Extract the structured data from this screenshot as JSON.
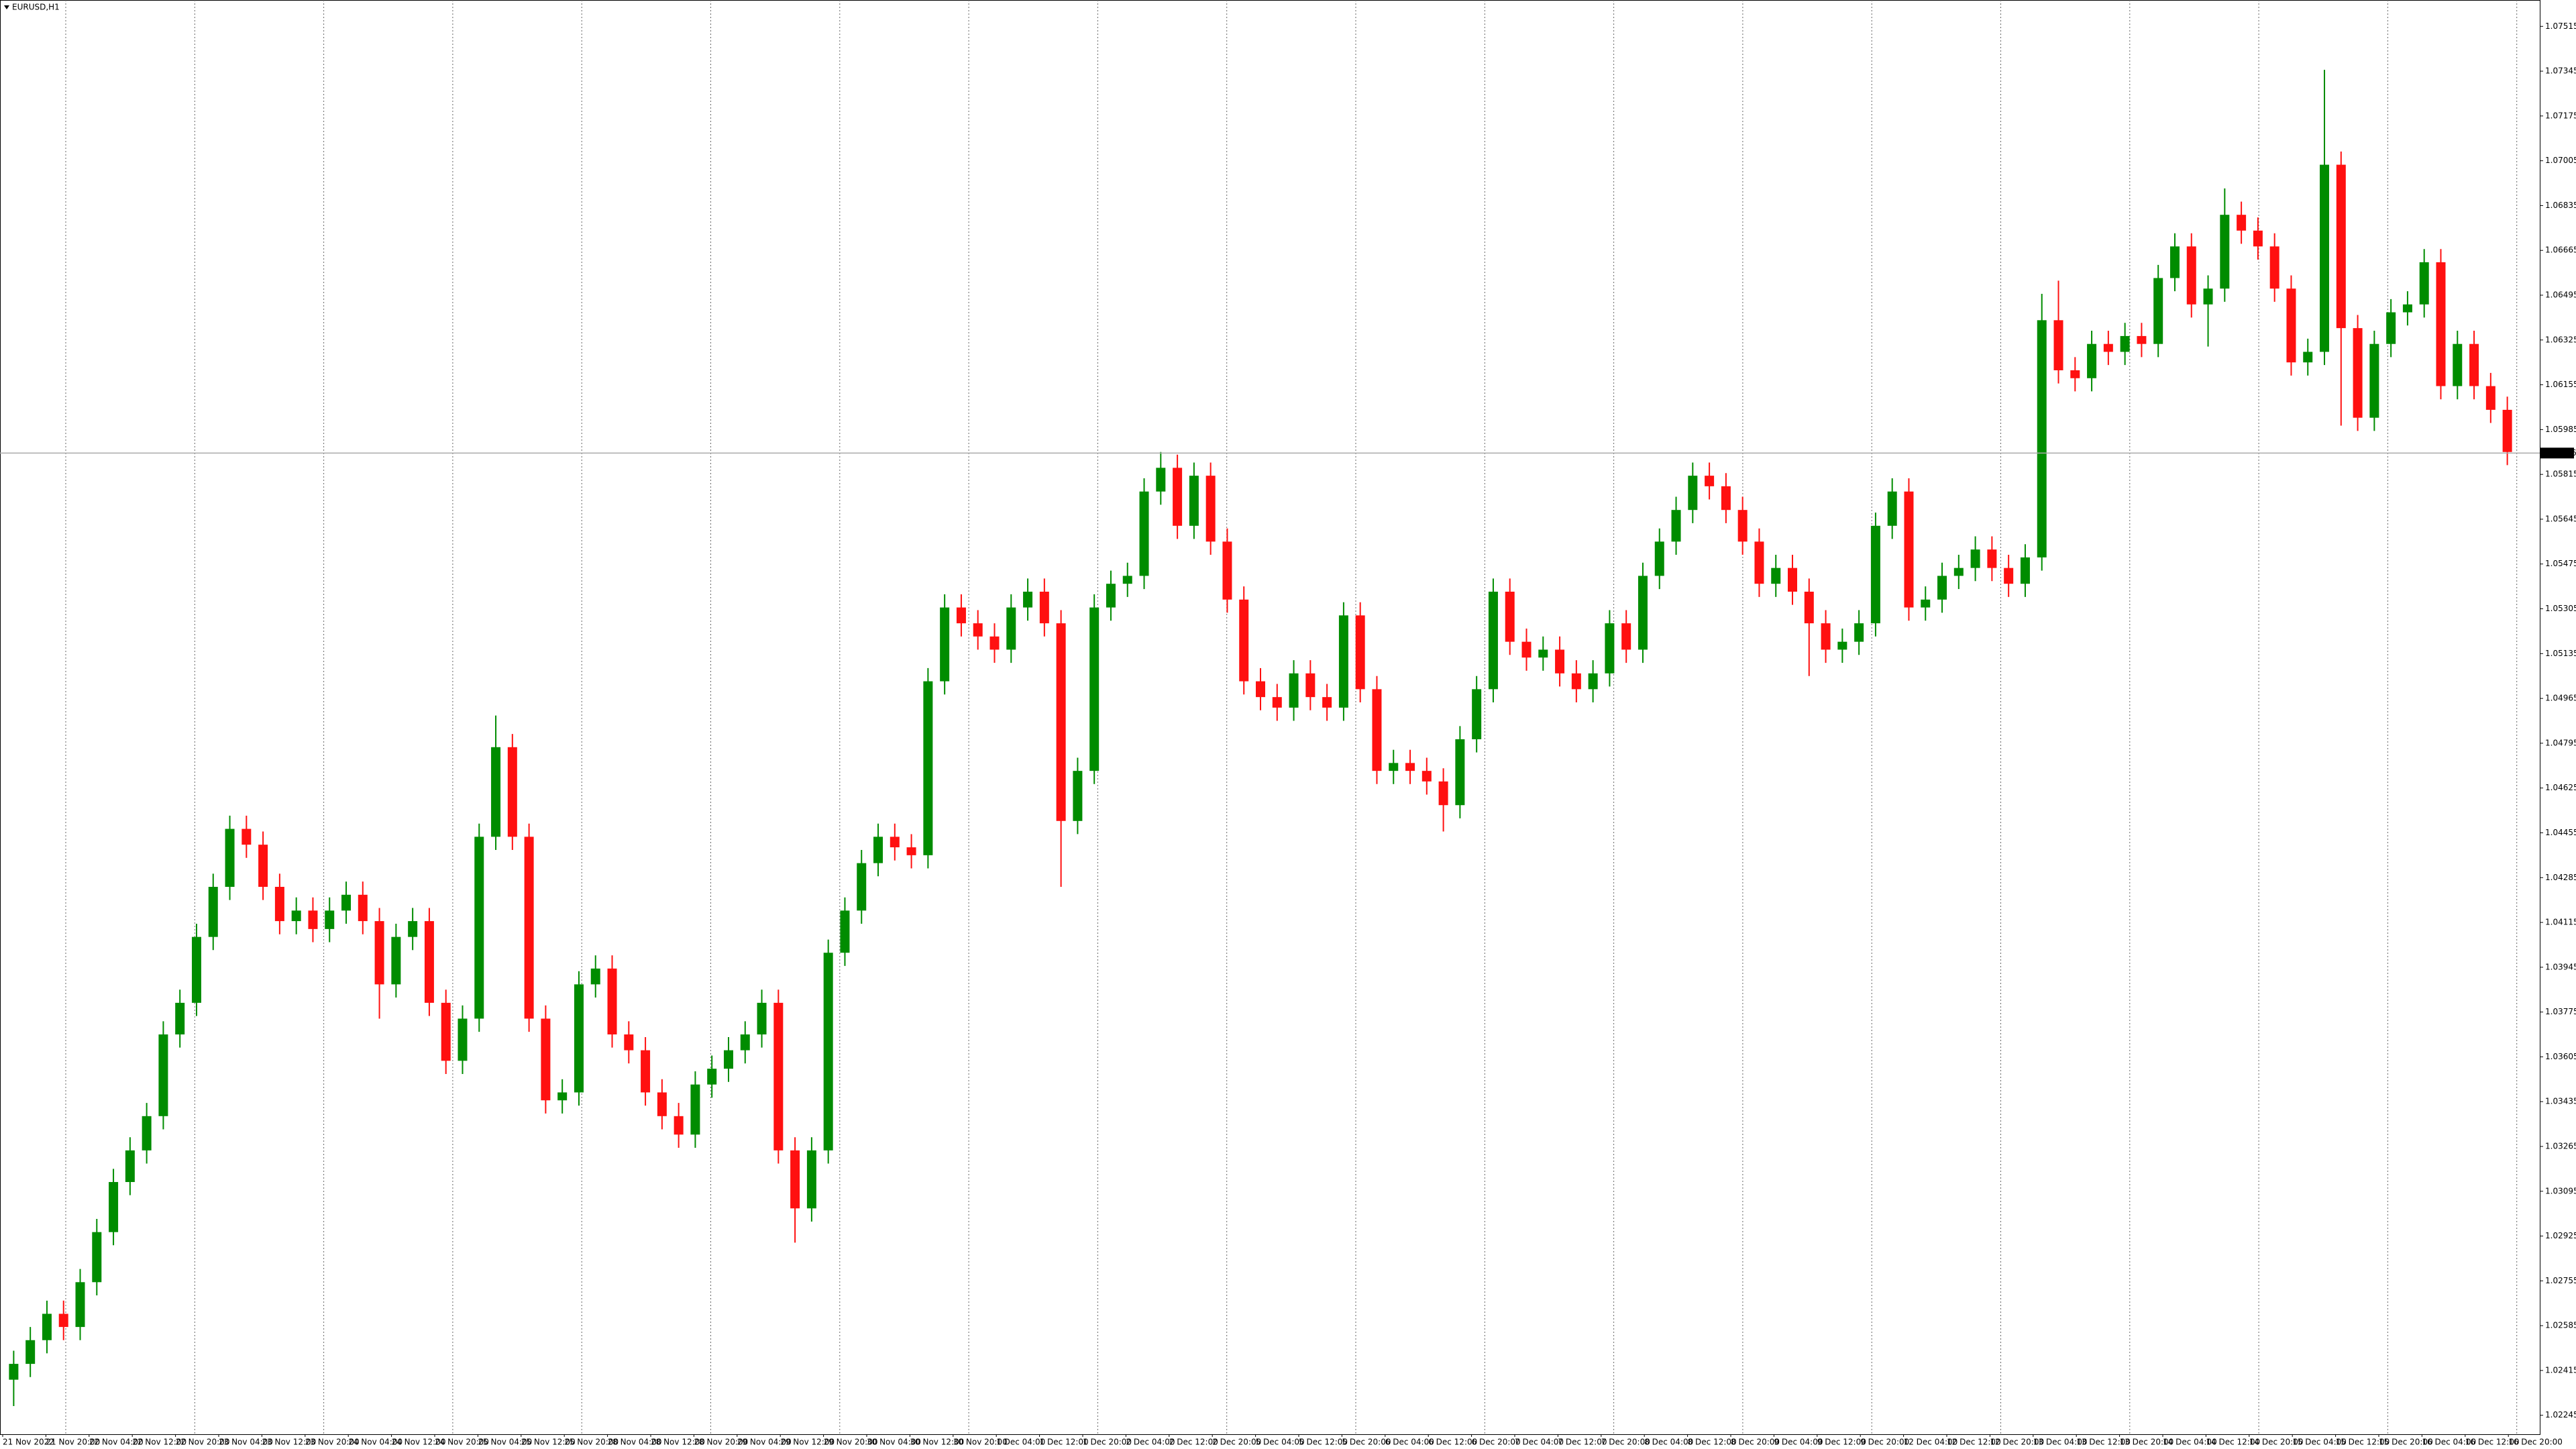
{
  "chart_data": {
    "type": "candlestick",
    "title": "EURUSD,H1",
    "xtick_labels": [
      "21 Nov 2022",
      "21 Nov 20:00",
      "22 Nov 04:00",
      "22 Nov 12:00",
      "22 Nov 20:00",
      "23 Nov 04:00",
      "23 Nov 12:00",
      "23 Nov 20:00",
      "24 Nov 04:00",
      "24 Nov 12:00",
      "24 Nov 20:00",
      "25 Nov 04:00",
      "25 Nov 12:00",
      "25 Nov 20:00",
      "28 Nov 04:00",
      "28 Nov 12:00",
      "28 Nov 20:00",
      "29 Nov 04:00",
      "29 Nov 12:00",
      "29 Nov 20:00",
      "30 Nov 04:00",
      "30 Nov 12:00",
      "30 Nov 20:00",
      "1 Dec 04:00",
      "1 Dec 12:00",
      "1 Dec 20:00",
      "2 Dec 04:00",
      "2 Dec 12:00",
      "2 Dec 20:00",
      "5 Dec 04:00",
      "5 Dec 12:00",
      "5 Dec 20:00",
      "6 Dec 04:00",
      "6 Dec 12:00",
      "6 Dec 20:00",
      "7 Dec 04:00",
      "7 Dec 12:00",
      "7 Dec 20:00",
      "8 Dec 04:00",
      "8 Dec 12:00",
      "8 Dec 20:00",
      "9 Dec 04:00",
      "9 Dec 12:00",
      "9 Dec 20:00",
      "12 Dec 04:00",
      "12 Dec 12:00",
      "12 Dec 20:00",
      "13 Dec 04:00",
      "13 Dec 12:00",
      "13 Dec 20:00",
      "14 Dec 04:00",
      "14 Dec 12:00",
      "14 Dec 20:00",
      "15 Dec 04:00",
      "15 Dec 12:00",
      "15 Dec 20:00",
      "16 Dec 04:00",
      "16 Dec 12:00",
      "16 Dec 20:00"
    ],
    "open": [
      1.0238,
      1.0244,
      1.0253,
      1.0263,
      1.0258,
      1.0275,
      1.0294,
      1.0313,
      1.0325,
      1.0338,
      1.0369,
      1.0381,
      1.0406,
      1.0425,
      1.0447,
      1.0441,
      1.0425,
      1.0412,
      1.0416,
      1.0409,
      1.0416,
      1.0422,
      1.0412,
      1.0388,
      1.0406,
      1.0412,
      1.0381,
      1.0359,
      1.0375,
      1.0444,
      1.0478,
      1.0444,
      1.0375,
      1.0344,
      1.0347,
      1.0388,
      1.0394,
      1.0369,
      1.0363,
      1.0347,
      1.0338,
      1.0331,
      1.035,
      1.0356,
      1.0363,
      1.0369,
      1.0381,
      1.0325,
      1.0303,
      1.0325,
      1.04,
      1.0416,
      1.0434,
      1.0444,
      1.044,
      1.0437,
      1.0503,
      1.0531,
      1.0525,
      1.052,
      1.0515,
      1.0531,
      1.0537,
      1.0525,
      1.045,
      1.0469,
      1.0531,
      1.054,
      1.0543,
      1.0575,
      1.0584,
      1.0562,
      1.0581,
      1.0556,
      1.0534,
      1.0503,
      1.0497,
      1.0493,
      1.0506,
      1.0497,
      1.0493,
      1.0528,
      1.05,
      1.0469,
      1.0472,
      1.0469,
      1.0465,
      1.0456,
      1.0481,
      1.05,
      1.0537,
      1.0518,
      1.0512,
      1.0515,
      1.0506,
      1.05,
      1.0506,
      1.0525,
      1.0515,
      1.0543,
      1.0556,
      1.0568,
      1.0581,
      1.0577,
      1.0568,
      1.0556,
      1.054,
      1.0546,
      1.0537,
      1.0525,
      1.0515,
      1.0518,
      1.0525,
      1.0562,
      1.0575,
      1.0531,
      1.0534,
      1.0543,
      1.0546,
      1.0553,
      1.0546,
      1.054,
      1.055,
      1.064,
      1.0621,
      1.0618,
      1.0631,
      1.0628,
      1.0634,
      1.0631,
      1.0656,
      1.0668,
      1.0646,
      1.0652,
      1.068,
      1.0674,
      1.0668,
      1.0652,
      1.0624,
      1.0628,
      1.0699,
      1.0637,
      1.0603,
      1.0631,
      1.0643,
      1.0646,
      1.0662,
      1.0615,
      1.0631,
      1.0615,
      1.0606
    ],
    "high": [
      1.0249,
      1.0258,
      1.0268,
      1.0268,
      1.028,
      1.0299,
      1.0318,
      1.033,
      1.0343,
      1.0374,
      1.0386,
      1.0411,
      1.043,
      1.0452,
      1.0452,
      1.0446,
      1.043,
      1.0421,
      1.0421,
      1.0421,
      1.0427,
      1.0427,
      1.0417,
      1.0411,
      1.0417,
      1.0417,
      1.0386,
      1.038,
      1.0449,
      1.049,
      1.0483,
      1.0449,
      1.038,
      1.0352,
      1.0393,
      1.0399,
      1.0399,
      1.0374,
      1.0368,
      1.0352,
      1.0343,
      1.0355,
      1.0361,
      1.0368,
      1.0374,
      1.0386,
      1.0386,
      1.033,
      1.033,
      1.0405,
      1.0421,
      1.0439,
      1.0449,
      1.0449,
      1.0445,
      1.0508,
      1.0536,
      1.0536,
      1.053,
      1.0525,
      1.0536,
      1.0542,
      1.0542,
      1.053,
      1.0474,
      1.0536,
      1.0545,
      1.0548,
      1.058,
      1.059,
      1.0589,
      1.0586,
      1.0586,
      1.0561,
      1.0539,
      1.0508,
      1.0502,
      1.0511,
      1.0511,
      1.0502,
      1.0533,
      1.0533,
      1.0505,
      1.0477,
      1.0477,
      1.0474,
      1.047,
      1.0486,
      1.0505,
      1.0542,
      1.0542,
      1.0523,
      1.052,
      1.052,
      1.0511,
      1.0511,
      1.053,
      1.053,
      1.0548,
      1.0561,
      1.0573,
      1.0586,
      1.0586,
      1.0582,
      1.0573,
      1.0561,
      1.0551,
      1.0551,
      1.0542,
      1.053,
      1.0523,
      1.053,
      1.0567,
      1.058,
      1.058,
      1.0539,
      1.0548,
      1.0551,
      1.0558,
      1.0558,
      1.0551,
      1.0555,
      1.065,
      1.0655,
      1.0626,
      1.0636,
      1.0636,
      1.0639,
      1.0639,
      1.0661,
      1.0673,
      1.0673,
      1.0657,
      1.069,
      1.0685,
      1.0679,
      1.0673,
      1.0657,
      1.0633,
      1.0735,
      1.0704,
      1.0642,
      1.0636,
      1.0648,
      1.0651,
      1.0667,
      1.0667,
      1.0636,
      1.0636,
      1.062,
      1.0611
    ],
    "low": [
      1.0228,
      1.0239,
      1.0248,
      1.0253,
      1.0253,
      1.027,
      1.0289,
      1.0308,
      1.032,
      1.0333,
      1.0364,
      1.0376,
      1.0401,
      1.042,
      1.0436,
      1.042,
      1.0407,
      1.0407,
      1.0404,
      1.0404,
      1.0411,
      1.0407,
      1.0375,
      1.0383,
      1.0401,
      1.0376,
      1.0354,
      1.0354,
      1.037,
      1.0439,
      1.0439,
      1.037,
      1.0339,
      1.0339,
      1.0342,
      1.0383,
      1.0364,
      1.0358,
      1.0342,
      1.0333,
      1.0326,
      1.0326,
      1.0345,
      1.0351,
      1.0358,
      1.0364,
      1.032,
      1.029,
      1.0298,
      1.032,
      1.0395,
      1.0411,
      1.0429,
      1.0435,
      1.0432,
      1.0432,
      1.0498,
      1.052,
      1.0515,
      1.051,
      1.051,
      1.0526,
      1.052,
      1.0425,
      1.0445,
      1.0464,
      1.0526,
      1.0535,
      1.0538,
      1.057,
      1.0557,
      1.0557,
      1.0551,
      1.0529,
      1.0498,
      1.0492,
      1.0488,
      1.0488,
      1.0492,
      1.0488,
      1.0488,
      1.0495,
      1.0464,
      1.0464,
      1.0464,
      1.046,
      1.0446,
      1.0451,
      1.0476,
      1.0495,
      1.0513,
      1.0507,
      1.0507,
      1.0501,
      1.0495,
      1.0495,
      1.0501,
      1.051,
      1.051,
      1.0538,
      1.0551,
      1.0563,
      1.0572,
      1.0563,
      1.0551,
      1.0535,
      1.0535,
      1.0532,
      1.0505,
      1.051,
      1.051,
      1.0513,
      1.052,
      1.0557,
      1.0526,
      1.0526,
      1.0529,
      1.0538,
      1.0541,
      1.0541,
      1.0535,
      1.0535,
      1.0545,
      1.0616,
      1.0613,
      1.0613,
      1.0623,
      1.0623,
      1.0626,
      1.0626,
      1.0651,
      1.0641,
      1.063,
      1.0647,
      1.0669,
      1.0663,
      1.0647,
      1.0619,
      1.0619,
      1.0623,
      1.06,
      1.0598,
      1.0598,
      1.0626,
      1.0638,
      1.0641,
      1.061,
      1.061,
      1.061,
      1.0601,
      1.0585
    ],
    "close": [
      1.0244,
      1.0253,
      1.0263,
      1.0258,
      1.0275,
      1.0294,
      1.0313,
      1.0325,
      1.0338,
      1.0369,
      1.0381,
      1.0406,
      1.0425,
      1.0447,
      1.0441,
      1.0425,
      1.0412,
      1.0416,
      1.0409,
      1.0416,
      1.0422,
      1.0412,
      1.0388,
      1.0406,
      1.0412,
      1.0381,
      1.0359,
      1.0375,
      1.0444,
      1.0478,
      1.0444,
      1.0375,
      1.0344,
      1.0347,
      1.0388,
      1.0394,
      1.0369,
      1.0363,
      1.0347,
      1.0338,
      1.0331,
      1.035,
      1.0356,
      1.0363,
      1.0369,
      1.0381,
      1.0325,
      1.0303,
      1.0325,
      1.04,
      1.0416,
      1.0434,
      1.0444,
      1.044,
      1.0437,
      1.0503,
      1.0531,
      1.0525,
      1.052,
      1.0515,
      1.0531,
      1.0537,
      1.0525,
      1.045,
      1.0469,
      1.0531,
      1.054,
      1.0543,
      1.0575,
      1.0584,
      1.0562,
      1.0581,
      1.0556,
      1.0534,
      1.0503,
      1.0497,
      1.0493,
      1.0506,
      1.0497,
      1.0493,
      1.0528,
      1.05,
      1.0469,
      1.0472,
      1.0469,
      1.0465,
      1.0456,
      1.0481,
      1.05,
      1.0537,
      1.0518,
      1.0512,
      1.0515,
      1.0506,
      1.05,
      1.0506,
      1.0525,
      1.0515,
      1.0543,
      1.0556,
      1.0568,
      1.0581,
      1.0577,
      1.0568,
      1.0556,
      1.054,
      1.0546,
      1.0537,
      1.0525,
      1.0515,
      1.0518,
      1.0525,
      1.0562,
      1.0575,
      1.0531,
      1.0534,
      1.0543,
      1.0546,
      1.0553,
      1.0546,
      1.054,
      1.055,
      1.064,
      1.0621,
      1.0618,
      1.0631,
      1.0628,
      1.0634,
      1.0631,
      1.0656,
      1.0668,
      1.0646,
      1.0652,
      1.068,
      1.0674,
      1.0668,
      1.0652,
      1.0624,
      1.0628,
      1.0699,
      1.0637,
      1.0603,
      1.0631,
      1.0643,
      1.0646,
      1.0662,
      1.0615,
      1.0631,
      1.0615,
      1.0606,
      1.059
    ],
    "up_color": "#008c00",
    "down_color": "#ff1010",
    "ylim": [
      1.02173,
      1.07615
    ],
    "yticks": [
      1.07515,
      1.07345,
      1.07175,
      1.07005,
      1.06835,
      1.06665,
      1.06495,
      1.06325,
      1.06155,
      1.05985,
      1.05815,
      1.05645,
      1.05475,
      1.05305,
      1.05135,
      1.04965,
      1.04795,
      1.04625,
      1.04455,
      1.04285,
      1.04115,
      1.03945,
      1.03775,
      1.03605,
      1.03435,
      1.03265,
      1.03095,
      1.02925,
      1.02755,
      1.02585,
      1.02415,
      1.02245
    ],
    "last_price": 1.05896
  }
}
